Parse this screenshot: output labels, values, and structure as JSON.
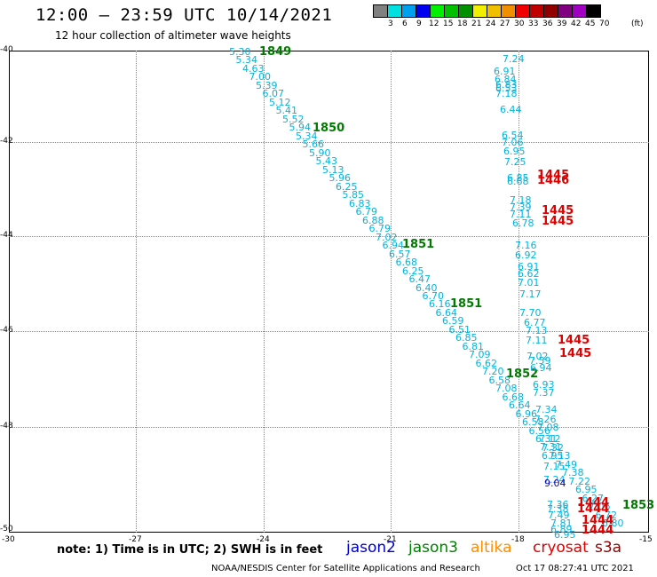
{
  "header": {
    "title": "12:00 – 23:59 UTC 10/14/2021",
    "subtitle": "12 hour collection of altimeter wave heights"
  },
  "color_scale": {
    "unit": "(ft)",
    "colors": [
      "#808080",
      "#00e0e0",
      "#00a0f0",
      "#0000f0",
      "#00f000",
      "#00c000",
      "#009000",
      "#f0f000",
      "#f0c000",
      "#f09000",
      "#f00000",
      "#c00000",
      "#900000",
      "#800080",
      "#a000c0",
      "#000000"
    ],
    "labels": [
      "3",
      "6",
      "9",
      "12",
      "15",
      "18",
      "21",
      "24",
      "27",
      "30",
      "33",
      "36",
      "39",
      "42",
      "45",
      "70"
    ]
  },
  "axes": {
    "lat_labels": [
      "-40",
      "-42",
      "-44",
      "-46",
      "-48",
      "-50"
    ],
    "lon_labels": [
      "-30",
      "-27",
      "-24",
      "-21",
      "-18",
      "-15"
    ]
  },
  "track_a": {
    "values": [
      "5.30",
      "5.34",
      "4.63",
      "7.00",
      "5.39",
      "6.07",
      "5.12",
      "5.41",
      "5.52",
      "5.94",
      "5.34",
      "5.66",
      "5.90",
      "5.43",
      "5.13",
      "5.96",
      "6.25",
      "5.85",
      "6.83",
      "6.79",
      "6.88",
      "6.79",
      "7.02",
      "6.94",
      "6.57",
      "6.68",
      "6.25",
      "6.47",
      "6.40",
      "6.70",
      "6.16",
      "6.64",
      "6.59",
      "6.51",
      "6.85",
      "6.81",
      "7.09",
      "6.62",
      "7.20",
      "6.58",
      "7.08",
      "6.68",
      "6.64",
      "6.96",
      "6.58",
      "6.56",
      "6.31",
      "7.32",
      "7.13",
      "7.49",
      "7.38",
      "7.22",
      "6.95",
      "6.27",
      "7.06",
      "6.72",
      "6.80"
    ],
    "times": [
      "1849",
      "1850",
      "1851",
      "1851",
      "1852",
      "1853"
    ]
  },
  "track_b": {
    "values": [
      "7.24",
      "6.91",
      "6.84",
      "6.83",
      "6.53",
      "7.18",
      "6.44",
      "6.54",
      "7.06",
      "6.95",
      "7.25",
      "6.85",
      "6.68",
      "7.18",
      "7.39",
      "7.11",
      "6.78",
      "7.16",
      "6.92",
      "6.91",
      "6.62",
      "7.01",
      "7.17",
      "7.70",
      "6.77",
      "7.13",
      "7.11",
      "7.02",
      "7.59",
      "6.94",
      "6.93",
      "7.37",
      "7.34",
      "7.26",
      "7.08",
      "7.12",
      "7.31",
      "6.95",
      "7.15",
      "7.24",
      "9.04",
      "7.36",
      "7.38",
      "7.49",
      "7.81",
      "6.89",
      "6.95"
    ],
    "times": [
      "1445",
      "1446",
      "1445",
      "1445",
      "1445",
      "1445",
      "1444",
      "1444",
      "1444",
      "1444"
    ]
  },
  "legend": [
    {
      "label": "jason2",
      "color": "#0000cc"
    },
    {
      "label": "jason3",
      "color": "#008000"
    },
    {
      "label": "altika",
      "color": "#ff8c00"
    },
    {
      "label": "cryosat",
      "color": "#dd0000"
    },
    {
      "label": "s3a",
      "color": "#8b0000"
    }
  ],
  "footer": {
    "note": "note: 1) Time is in UTC; 2) SWH is in feet",
    "credit": "NOAA/NESDIS Center for Satellite Applications and Research",
    "generated": "Oct 17 08:27:41 UTC 2021"
  }
}
